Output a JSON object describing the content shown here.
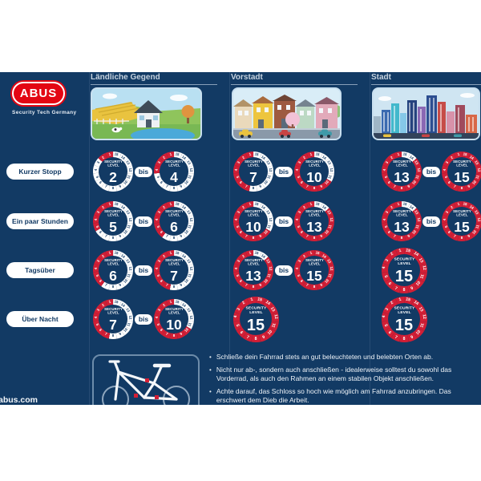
{
  "brand": {
    "name": "ABUS",
    "tagline": "Security Tech Germany"
  },
  "footer": {
    "url": "abus.com"
  },
  "colors": {
    "navy": "#123a64",
    "badge_red": "#d21e35",
    "logo_red": "#e30613",
    "white": "#ffffff",
    "header_text": "#c8d4e0"
  },
  "matrix": {
    "badge_title": [
      "SECURITY",
      "LEVEL"
    ],
    "bis_label": "bis",
    "scale_max": 15,
    "columns": [
      {
        "label": "Ländliche Gegend",
        "scene": "rural-countryside"
      },
      {
        "label": "Vorstadt",
        "scene": "suburb-street"
      },
      {
        "label": "Stadt",
        "scene": "city-skyline"
      }
    ],
    "rows": [
      {
        "label": "Kurzer Stopp",
        "cells": [
          {
            "from": 2,
            "to": 4
          },
          {
            "from": 7,
            "to": 10
          },
          {
            "from": 13,
            "to": 15
          }
        ]
      },
      {
        "label": "Ein paar Stunden",
        "cells": [
          {
            "from": 5,
            "to": 6
          },
          {
            "from": 10,
            "to": 13
          },
          {
            "from": 13,
            "to": 15
          }
        ]
      },
      {
        "label": "Tagsüber",
        "cells": [
          {
            "from": 6,
            "to": 7
          },
          {
            "from": 13,
            "to": 15
          },
          {
            "from": 15,
            "to": null
          }
        ]
      },
      {
        "label": "Über Nacht",
        "cells": [
          {
            "from": 7,
            "to": 10
          },
          {
            "from": 15,
            "to": null
          },
          {
            "from": 15,
            "to": null
          }
        ]
      }
    ]
  },
  "tips": [
    "Schließe dein Fahrrad stets an gut beleuchteten und belebten Orten ab.",
    "Nicht nur ab-, sondern auch anschließen - idealerweise solltest du sowohl das Vorderrad, als auch den Rahmen an einem stabilen Objekt anschließen.",
    "Achte darauf, das Schloss so hoch wie möglich am Fahrrad anzubringen. Das erschwert dem Dieb die Arbeit."
  ]
}
